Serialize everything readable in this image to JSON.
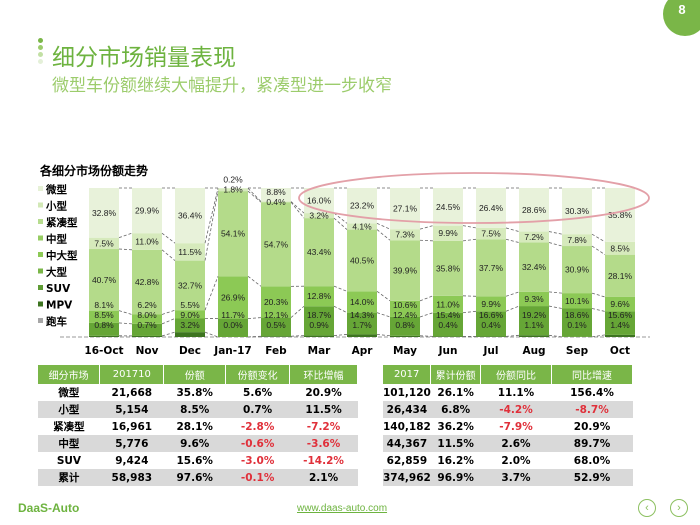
{
  "page_number": "8",
  "title": "细分市场销量表现",
  "subtitle": "微型车份额继续大幅提升，紧凑型进一步收窄",
  "chart_data": {
    "type": "bar",
    "stacked": true,
    "title": "各细分市场份额走势",
    "categories": [
      "16-Oct",
      "Nov",
      "Dec",
      "Jan-17",
      "Feb",
      "Mar",
      "Apr",
      "May",
      "Jun",
      "Jul",
      "Aug",
      "Sep",
      "Oct"
    ],
    "legend": [
      "微型",
      "小型",
      "紧凑型",
      "中型",
      "中大型",
      "大型",
      "SUV",
      "MPV",
      "跑车"
    ],
    "legend_colors": [
      "#e6f1d6",
      "#d2e8b6",
      "#b6dc8e",
      "#96cc62",
      "#8cc955",
      "#7ab648",
      "#5f9c35",
      "#3d7420",
      "#a6a6a6"
    ],
    "legend_placement": "left",
    "series": [
      {
        "name": "微型",
        "color": "#e8f2da",
        "values": [
          32.8,
          29.9,
          36.4,
          0.2,
          8.8,
          16.0,
          23.2,
          27.1,
          24.5,
          26.4,
          28.6,
          30.3,
          35.8
        ]
      },
      {
        "name": "小型",
        "color": "#d6eabc",
        "values": [
          7.5,
          11.0,
          11.5,
          1.8,
          0.4,
          3.2,
          4.1,
          7.3,
          9.9,
          7.5,
          7.2,
          7.8,
          8.5
        ]
      },
      {
        "name": "紧凑型",
        "color": "#b4db8a",
        "values": [
          40.7,
          42.8,
          32.7,
          54.1,
          54.7,
          43.4,
          40.5,
          39.9,
          35.8,
          37.7,
          32.4,
          30.9,
          28.1
        ]
      },
      {
        "name": "中型",
        "color": "#8cc955",
        "values": [
          8.1,
          6.2,
          5.5,
          26.9,
          20.3,
          12.8,
          14.0,
          10.6,
          11.0,
          9.9,
          9.3,
          10.1,
          9.6
        ]
      },
      {
        "name": "SUV",
        "color": "#66a636",
        "values": [
          8.5,
          8.0,
          9.0,
          11.7,
          12.1,
          18.7,
          14.3,
          12.4,
          15.4,
          16.6,
          19.2,
          18.6,
          15.6
        ]
      },
      {
        "name": "MPV",
        "color": "#3d7420",
        "values": [
          0.8,
          0.7,
          3.2,
          0.0,
          0.5,
          0.9,
          1.7,
          0.8,
          0.4,
          0.4,
          1.1,
          0.1,
          1.4
        ]
      }
    ],
    "ylim": [
      0,
      100
    ],
    "highlight": "ellipse around 微型 values Mar–Oct"
  },
  "table1": {
    "headers": [
      "细分市场",
      "201710",
      "份额",
      "份额变化",
      "环比增幅"
    ],
    "rows": [
      [
        "微型",
        "21,668",
        "35.8%",
        "5.6%",
        "20.9%"
      ],
      [
        "小型",
        "5,154",
        "8.5%",
        "0.7%",
        "11.5%"
      ],
      [
        "紧凑型",
        "16,961",
        "28.1%",
        "-2.8%",
        "-7.2%"
      ],
      [
        "中型",
        "5,776",
        "9.6%",
        "-0.6%",
        "-3.6%"
      ],
      [
        "SUV",
        "9,424",
        "15.6%",
        "-3.0%",
        "-14.2%"
      ],
      [
        "累计",
        "58,983",
        "97.6%",
        "-0.1%",
        "2.1%"
      ]
    ]
  },
  "table2": {
    "headers": [
      "2017",
      "累计份额",
      "份额同比",
      "同比增速"
    ],
    "rows": [
      [
        "101,120",
        "26.1%",
        "11.1%",
        "156.4%"
      ],
      [
        "26,434",
        "6.8%",
        "-4.2%",
        "-8.7%"
      ],
      [
        "140,182",
        "36.2%",
        "-7.9%",
        "20.9%"
      ],
      [
        "44,367",
        "11.5%",
        "2.6%",
        "89.7%"
      ],
      [
        "62,859",
        "16.2%",
        "2.0%",
        "68.0%"
      ],
      [
        "374,962",
        "96.9%",
        "3.7%",
        "52.9%"
      ]
    ]
  },
  "colors": {
    "accent": "#7ab648",
    "negative": "#e0303a",
    "highlight": "#e3a0a8"
  },
  "footer": {
    "logo": "DaaS-Auto",
    "url": "www.daas-auto.com",
    "prev_icon": "chevron-left-icon",
    "next_icon": "chevron-right-icon"
  }
}
